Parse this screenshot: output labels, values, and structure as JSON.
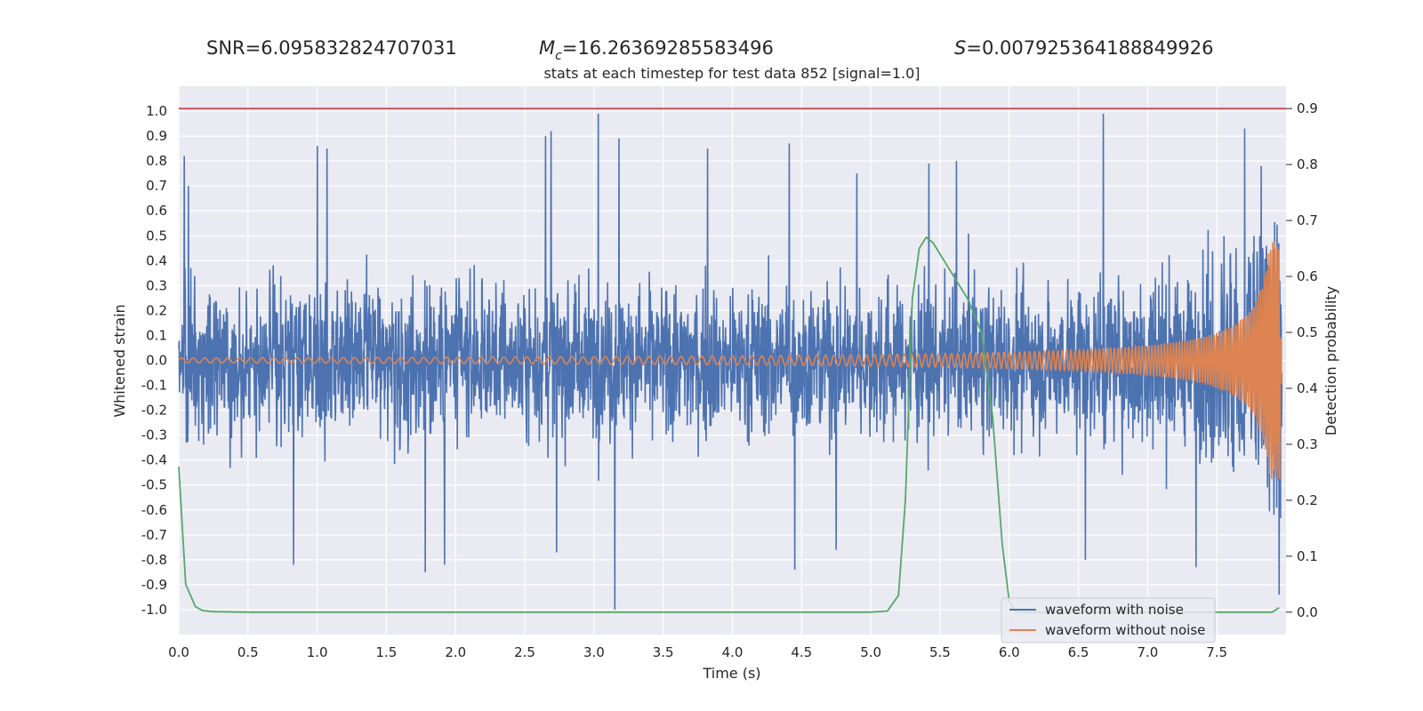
{
  "header": {
    "snr_text": "SNR=6.095832824707031",
    "mc_symbol": "M",
    "mc_sub": "c",
    "mc_value": "=16.26369285583496",
    "s_symbol": "S",
    "s_value": "=0.007925364188849926"
  },
  "chart_data": {
    "type": "line",
    "subtitle": "stats at each timestep for test data 852 [signal=1.0]",
    "xlabel": "Time (s)",
    "ylabel_left": "Whitened strain",
    "ylabel_right": "Detection probability",
    "xlim": [
      0.0,
      8.0
    ],
    "ylim_left": [
      -1.1,
      1.1
    ],
    "ylim_right": [
      -0.04,
      0.94
    ],
    "grid": true,
    "legend_position": "lower-right",
    "x_ticks": [
      "0.0",
      "0.5",
      "1.0",
      "1.5",
      "2.0",
      "2.5",
      "3.0",
      "3.5",
      "4.0",
      "4.5",
      "5.0",
      "5.5",
      "6.0",
      "6.5",
      "7.0",
      "7.5"
    ],
    "y_ticks_left": [
      "1.0",
      "0.9",
      "0.8",
      "0.7",
      "0.6",
      "0.5",
      "0.4",
      "0.3",
      "0.2",
      "0.1",
      "0.0",
      "-0.1",
      "-0.2",
      "-0.3",
      "-0.4",
      "-0.5",
      "-0.6",
      "-0.7",
      "-0.8",
      "-0.9",
      "-1.0"
    ],
    "y_ticks_right": [
      "0.9",
      "0.8",
      "0.7",
      "0.6",
      "0.5",
      "0.4",
      "0.3",
      "0.2",
      "0.1",
      "0.0"
    ],
    "threshold_line": {
      "axis": "right",
      "value": 0.9,
      "color": "#c44e52"
    },
    "series": [
      {
        "name": "waveform with noise",
        "axis": "left",
        "color": "#4c72b0",
        "description_points": "noise envelope approx +/-0.5 typical, peaks to ~0.99 at t=3.03 and t=6.68, min ~-1.0 at t=3.15",
        "peaks": [
          [
            0.04,
            0.82
          ],
          [
            0.07,
            0.7
          ],
          [
            1.0,
            0.86
          ],
          [
            1.07,
            0.85
          ],
          [
            2.65,
            0.9
          ],
          [
            2.69,
            0.92
          ],
          [
            3.03,
            0.99
          ],
          [
            3.15,
            -1.0
          ],
          [
            3.18,
            0.89
          ],
          [
            3.82,
            0.85
          ],
          [
            4.41,
            0.87
          ],
          [
            4.9,
            0.75
          ],
          [
            5.42,
            0.79
          ],
          [
            5.62,
            0.8
          ],
          [
            6.68,
            0.99
          ],
          [
            7.7,
            0.93
          ],
          [
            7.82,
            0.78
          ],
          [
            7.95,
            -0.94
          ],
          [
            0.83,
            -0.82
          ],
          [
            1.78,
            -0.85
          ],
          [
            1.92,
            -0.82
          ],
          [
            2.73,
            -0.77
          ],
          [
            4.45,
            -0.84
          ],
          [
            4.75,
            -0.76
          ],
          [
            6.55,
            -0.8
          ],
          [
            7.35,
            -0.83
          ]
        ]
      },
      {
        "name": "waveform without noise",
        "axis": "left",
        "color": "#dd8452",
        "chirp": {
          "start_amp": 0.01,
          "peak_amp": 0.48,
          "peak_time": 7.95,
          "start_freq": 12,
          "end_freq": 150
        }
      },
      {
        "name": "detection probability",
        "axis": "right",
        "color": "#55a868",
        "x": [
          0.0,
          0.05,
          0.12,
          0.17,
          0.25,
          0.5,
          1.0,
          2.0,
          3.0,
          4.0,
          4.5,
          5.0,
          5.12,
          5.2,
          5.25,
          5.3,
          5.35,
          5.4,
          5.45,
          5.5,
          5.6,
          5.7,
          5.8,
          5.88,
          5.95,
          6.0,
          6.05,
          6.1,
          6.5,
          7.0,
          7.5,
          7.9,
          7.95
        ],
        "y": [
          0.26,
          0.05,
          0.01,
          0.003,
          0.001,
          0.0,
          0.0,
          0.0,
          0.0,
          0.0,
          0.0,
          0.0,
          0.002,
          0.03,
          0.2,
          0.56,
          0.65,
          0.67,
          0.66,
          0.64,
          0.6,
          0.56,
          0.5,
          0.35,
          0.12,
          0.02,
          0.0,
          0.0,
          0.0,
          0.0,
          0.0,
          0.0,
          0.008
        ]
      }
    ]
  }
}
